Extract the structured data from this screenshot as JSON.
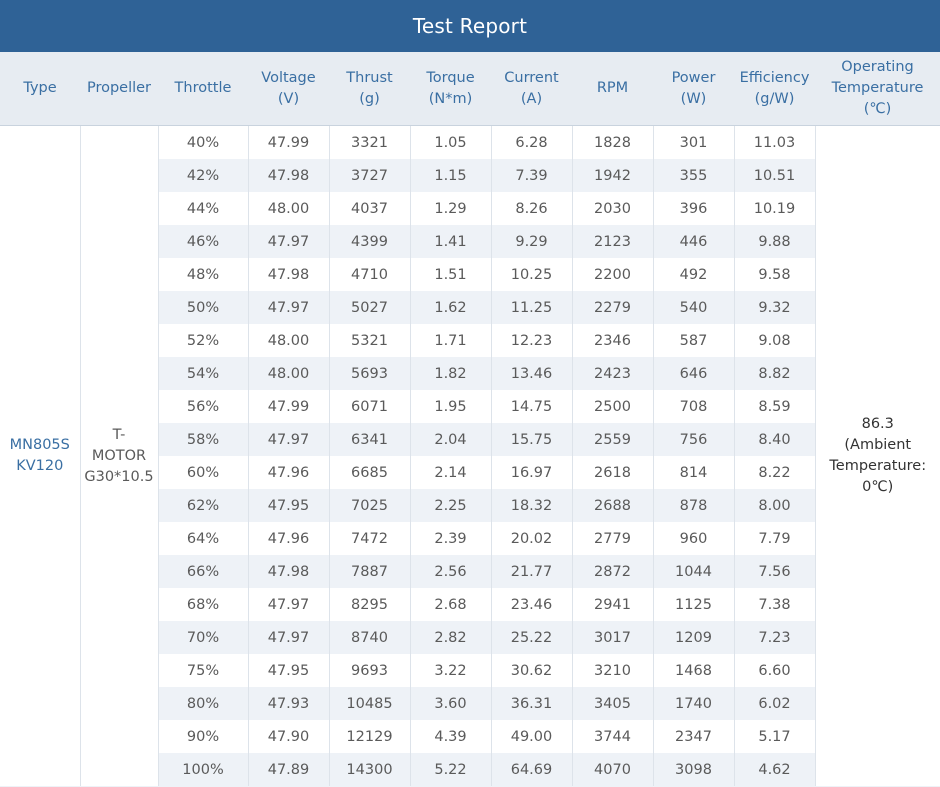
{
  "title": "Test Report",
  "headers": [
    "Type",
    "Propeller",
    "Throttle",
    "Voltage\n(V)",
    "Thrust\n(g)",
    "Torque\n(N*m)",
    "Current\n(A)",
    "RPM",
    "Power\n(W)",
    "Efficiency\n(g/W)",
    "Operating\nTemperature\n(℃)"
  ],
  "type": "MN805S\nKV120",
  "propeller": "T-\nMOTOR\nG30*10.5",
  "operating_temperature": "86.3\n(Ambient\nTemperature:\n0℃)",
  "rows": [
    [
      "40%",
      "47.99",
      "3321",
      "1.05",
      "6.28",
      "1828",
      "301",
      "11.03"
    ],
    [
      "42%",
      "47.98",
      "3727",
      "1.15",
      "7.39",
      "1942",
      "355",
      "10.51"
    ],
    [
      "44%",
      "48.00",
      "4037",
      "1.29",
      "8.26",
      "2030",
      "396",
      "10.19"
    ],
    [
      "46%",
      "47.97",
      "4399",
      "1.41",
      "9.29",
      "2123",
      "446",
      "9.88"
    ],
    [
      "48%",
      "47.98",
      "4710",
      "1.51",
      "10.25",
      "2200",
      "492",
      "9.58"
    ],
    [
      "50%",
      "47.97",
      "5027",
      "1.62",
      "11.25",
      "2279",
      "540",
      "9.32"
    ],
    [
      "52%",
      "48.00",
      "5321",
      "1.71",
      "12.23",
      "2346",
      "587",
      "9.08"
    ],
    [
      "54%",
      "48.00",
      "5693",
      "1.82",
      "13.46",
      "2423",
      "646",
      "8.82"
    ],
    [
      "56%",
      "47.99",
      "6071",
      "1.95",
      "14.75",
      "2500",
      "708",
      "8.59"
    ],
    [
      "58%",
      "47.97",
      "6341",
      "2.04",
      "15.75",
      "2559",
      "756",
      "8.40"
    ],
    [
      "60%",
      "47.96",
      "6685",
      "2.14",
      "16.97",
      "2618",
      "814",
      "8.22"
    ],
    [
      "62%",
      "47.95",
      "7025",
      "2.25",
      "18.32",
      "2688",
      "878",
      "8.00"
    ],
    [
      "64%",
      "47.96",
      "7472",
      "2.39",
      "20.02",
      "2779",
      "960",
      "7.79"
    ],
    [
      "66%",
      "47.98",
      "7887",
      "2.56",
      "21.77",
      "2872",
      "1044",
      "7.56"
    ],
    [
      "68%",
      "47.97",
      "8295",
      "2.68",
      "23.46",
      "2941",
      "1125",
      "7.38"
    ],
    [
      "70%",
      "47.97",
      "8740",
      "2.82",
      "25.22",
      "3017",
      "1209",
      "7.23"
    ],
    [
      "75%",
      "47.95",
      "9693",
      "3.22",
      "30.62",
      "3210",
      "1468",
      "6.60"
    ],
    [
      "80%",
      "47.93",
      "10485",
      "3.60",
      "36.31",
      "3405",
      "1740",
      "6.02"
    ],
    [
      "90%",
      "47.90",
      "12129",
      "4.39",
      "49.00",
      "3744",
      "2347",
      "5.17"
    ],
    [
      "100%",
      "47.89",
      "14300",
      "5.22",
      "64.69",
      "4070",
      "3098",
      "4.62"
    ]
  ],
  "colors": {
    "title_bar": "#2f6296",
    "header_bg": "#e7ecf2",
    "header_text": "#3a6fa3",
    "stripe": "#eef2f7"
  }
}
